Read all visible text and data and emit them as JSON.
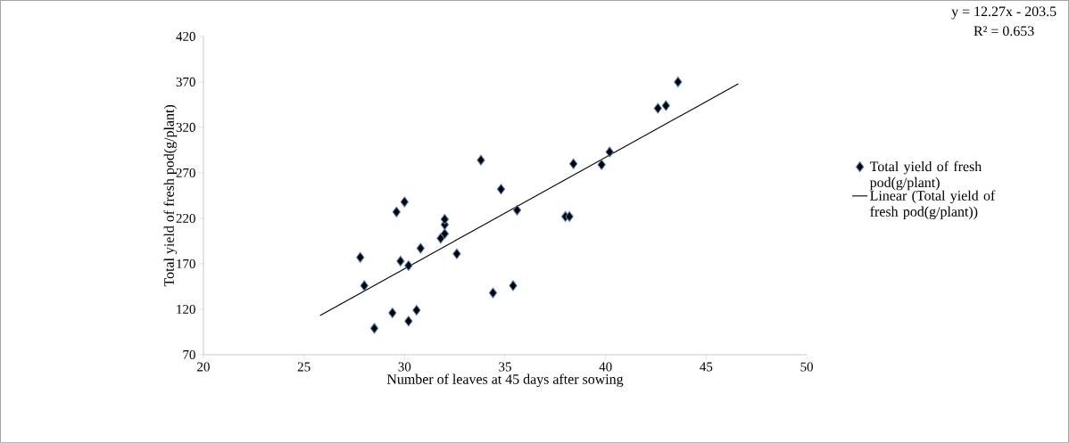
{
  "chart_data": {
    "type": "scatter",
    "xlabel": "Number  of  leaves at 45 days after sowing",
    "ylabel": "Total yield of fresh pod(g/plant)",
    "annotations": [
      "y = 12.27x - 203.5",
      "R² = 0.653"
    ],
    "xlim": [
      20,
      50
    ],
    "xticks": [
      20,
      25,
      30,
      35,
      40,
      45,
      50
    ],
    "ylim": [
      70,
      420
    ],
    "yticks": [
      70,
      120,
      170,
      220,
      270,
      320,
      370,
      420
    ],
    "grid": false,
    "legend": "right",
    "series": [
      {
        "name": "Total yield of fresh pod(g/plant)",
        "marker": "diamond",
        "color": "#000000",
        "x": [
          27.8,
          28.0,
          28.5,
          29.4,
          29.6,
          30.0,
          29.8,
          30.2,
          30.2,
          30.6,
          30.8,
          31.8,
          32.0,
          32.0,
          32.0,
          32.6,
          33.8,
          34.4,
          34.8,
          35.4,
          35.6,
          38.0,
          38.2,
          38.4,
          39.8,
          40.2,
          42.6,
          43.0,
          43.6
        ],
        "values": [
          177,
          146,
          99,
          116,
          227,
          238,
          173,
          107,
          168,
          119,
          187,
          198,
          203,
          213,
          219,
          181,
          284,
          138,
          252,
          146,
          229,
          222,
          222,
          280,
          279,
          293,
          341,
          344,
          370
        ]
      },
      {
        "name": "Linear (Total yield of fresh pod(g/plant))",
        "type": "line",
        "marker": "none",
        "line_style": "solid",
        "color": "#000000",
        "x": [
          25.8,
          46.6
        ],
        "values": [
          113,
          368
        ]
      }
    ]
  }
}
